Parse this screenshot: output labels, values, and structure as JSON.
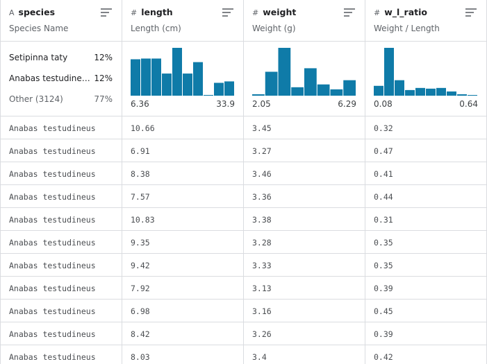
{
  "columns": [
    {
      "icon": "A",
      "name": "species",
      "description": "Species Name",
      "top_values": [
        {
          "label": "Setipinna taty",
          "percent": "12%"
        },
        {
          "label": "Anabas testudine…",
          "percent": "12%"
        },
        {
          "label": "Other (3124)",
          "percent": "77%"
        }
      ]
    },
    {
      "icon": "#",
      "name": "length",
      "description": "Length (cm)",
      "histogram": [
        51,
        52,
        52,
        31,
        67,
        31,
        47,
        1,
        18,
        20
      ],
      "min": 6.36,
      "max": 33.9
    },
    {
      "icon": "#",
      "name": "weight",
      "description": "Weight (g)",
      "histogram": [
        2,
        34,
        68,
        12,
        39,
        16,
        9,
        22
      ],
      "min": 2.05,
      "max": 6.29
    },
    {
      "icon": "#",
      "name": "w_l_ratio",
      "description": "Weight / Length",
      "histogram": [
        14,
        68,
        22,
        8,
        11,
        10,
        11,
        6,
        2,
        1
      ],
      "min": 0.08,
      "max": 0.64
    }
  ],
  "rows": [
    [
      "Anabas testudineus",
      10.66,
      3.45,
      0.32
    ],
    [
      "Anabas testudineus",
      6.91,
      3.27,
      0.47
    ],
    [
      "Anabas testudineus",
      8.38,
      3.46,
      0.41
    ],
    [
      "Anabas testudineus",
      7.57,
      3.36,
      0.44
    ],
    [
      "Anabas testudineus",
      10.83,
      3.38,
      0.31
    ],
    [
      "Anabas testudineus",
      9.35,
      3.28,
      0.35
    ],
    [
      "Anabas testudineus",
      9.42,
      3.33,
      0.35
    ],
    [
      "Anabas testudineus",
      7.92,
      3.13,
      0.39
    ],
    [
      "Anabas testudineus",
      6.98,
      3.16,
      0.45
    ],
    [
      "Anabas testudineus",
      8.42,
      3.26,
      0.39
    ],
    [
      "Anabas testudineus",
      8.03,
      3.4,
      0.42
    ]
  ]
}
